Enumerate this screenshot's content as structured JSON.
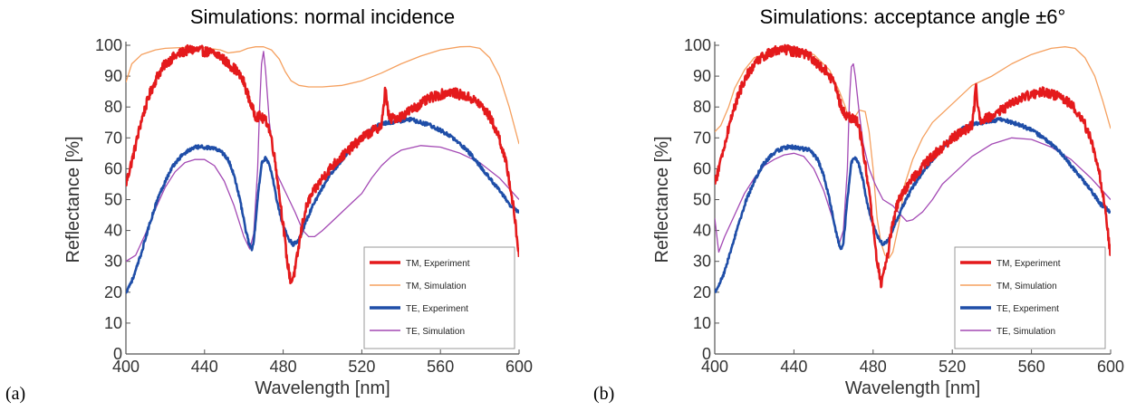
{
  "chart_data": [
    {
      "type": "line",
      "panel_label": "(a)",
      "title": "Simulations: normal incidence",
      "xlabel": "Wavelength [nm]",
      "ylabel": "Reflectance [%]",
      "xlim": [
        400,
        600
      ],
      "ylim": [
        0,
        100
      ],
      "xticks": [
        400,
        440,
        480,
        520,
        560,
        600
      ],
      "yticks": [
        0,
        10,
        20,
        30,
        40,
        50,
        60,
        70,
        80,
        90,
        100
      ],
      "grid": false,
      "legend_position": "bottom-right",
      "series": [
        {
          "name": "TM, Experiment",
          "color": "#e41a1c",
          "noise": 1.6,
          "x": [
            400,
            404,
            408,
            412,
            416,
            420,
            424,
            428,
            432,
            436,
            440,
            444,
            448,
            452,
            456,
            460,
            462,
            464,
            466,
            468,
            470,
            472,
            474,
            476,
            478,
            480,
            482,
            484,
            486,
            488,
            490,
            492,
            494,
            496,
            500,
            505,
            510,
            515,
            520,
            525,
            530,
            531,
            532,
            533,
            534,
            540,
            545,
            550,
            555,
            560,
            565,
            570,
            575,
            580,
            585,
            590,
            594,
            597,
            600
          ],
          "y": [
            55,
            65,
            76,
            84,
            90,
            94,
            96,
            97.5,
            98.5,
            98.5,
            98,
            97.5,
            96.5,
            94,
            92,
            88,
            84,
            80,
            77,
            77,
            76,
            75,
            70,
            62,
            52,
            42,
            30,
            23,
            27,
            35,
            43,
            48,
            51,
            53,
            57,
            61,
            64,
            67,
            70,
            72,
            74,
            79,
            87,
            80,
            76,
            77,
            79,
            81,
            83,
            84,
            85,
            84,
            83,
            81,
            77,
            70,
            60,
            48,
            32
          ]
        },
        {
          "name": "TM, Simulation",
          "color": "#f5a05f",
          "noise": 0,
          "x": [
            400,
            403,
            408,
            415,
            420,
            430,
            440,
            448,
            452,
            458,
            462,
            466,
            470,
            474,
            478,
            481,
            484,
            488,
            493,
            500,
            510,
            520,
            530,
            540,
            550,
            560,
            570,
            575,
            580,
            585,
            590,
            595,
            600
          ],
          "y": [
            88,
            94,
            97,
            98.5,
            99,
            99.3,
            99.2,
            98.5,
            97.5,
            98,
            99,
            99.5,
            99.5,
            98.5,
            95.5,
            91.5,
            88.5,
            87,
            86.5,
            86.5,
            87,
            88.5,
            91,
            94,
            96.5,
            98.5,
            99.5,
            99.6,
            99,
            96,
            90,
            80,
            68
          ]
        },
        {
          "name": "TE, Experiment",
          "color": "#1f4ea8",
          "noise": 0.6,
          "x": [
            400,
            404,
            408,
            412,
            416,
            420,
            424,
            428,
            432,
            436,
            440,
            444,
            448,
            452,
            455,
            458,
            461,
            463,
            464,
            465,
            467,
            469,
            471,
            473,
            475,
            477,
            479,
            481,
            483,
            485,
            488,
            491,
            495,
            500,
            505,
            510,
            515,
            520,
            525,
            530,
            535,
            540,
            545,
            550,
            555,
            560,
            565,
            570,
            575,
            580,
            585,
            590,
            595,
            600
          ],
          "y": [
            20,
            25,
            33,
            42,
            50,
            56,
            61,
            64,
            66,
            67,
            67,
            66.5,
            66,
            63,
            58,
            50,
            40,
            35,
            34,
            36,
            50,
            62,
            63.5,
            61,
            56,
            49,
            44,
            40,
            37,
            35.5,
            37,
            42,
            48,
            54,
            59,
            63,
            67,
            70,
            73,
            74.5,
            75,
            75.5,
            76,
            75,
            74,
            72.5,
            70.5,
            68,
            65,
            61,
            57,
            53,
            48.5,
            46
          ]
        },
        {
          "name": "TE, Simulation",
          "color": "#a349b4",
          "noise": 0,
          "x": [
            400,
            405,
            410,
            415,
            420,
            425,
            430,
            435,
            440,
            445,
            450,
            455,
            460,
            463,
            465,
            467,
            468,
            469,
            470,
            471,
            473,
            475,
            477,
            480,
            483,
            486,
            490,
            493,
            496,
            500,
            505,
            510,
            515,
            520,
            525,
            530,
            535,
            540,
            550,
            560,
            570,
            580,
            590,
            600
          ],
          "y": [
            30,
            32,
            39,
            47,
            54,
            59,
            62,
            63,
            63,
            61,
            56,
            48,
            38,
            34,
            39,
            60,
            80,
            94,
            98,
            92,
            75,
            65,
            58,
            54,
            50,
            46,
            40,
            38,
            38,
            40,
            43,
            46,
            49,
            52,
            57,
            61,
            64,
            66,
            67.5,
            67,
            65,
            62,
            57,
            50
          ]
        }
      ]
    },
    {
      "type": "line",
      "panel_label": "(b)",
      "title": "Simulations: acceptance angle ±6°",
      "xlabel": "Wavelength [nm]",
      "ylabel": "Reflectance [%]",
      "xlim": [
        400,
        600
      ],
      "ylim": [
        0,
        100
      ],
      "xticks": [
        400,
        440,
        480,
        520,
        560,
        600
      ],
      "yticks": [
        0,
        10,
        20,
        30,
        40,
        50,
        60,
        70,
        80,
        90,
        100
      ],
      "grid": false,
      "legend_position": "bottom-right",
      "series": [
        {
          "name": "TM, Experiment",
          "color": "#e41a1c",
          "noise": 1.6,
          "x": [
            400,
            404,
            408,
            412,
            416,
            420,
            424,
            428,
            432,
            436,
            440,
            444,
            448,
            452,
            456,
            460,
            462,
            464,
            466,
            468,
            470,
            472,
            474,
            476,
            478,
            480,
            482,
            484,
            486,
            488,
            490,
            492,
            494,
            496,
            500,
            505,
            510,
            515,
            520,
            525,
            530,
            531,
            532,
            533,
            534,
            540,
            545,
            550,
            555,
            560,
            565,
            570,
            575,
            580,
            585,
            590,
            594,
            597,
            600
          ],
          "y": [
            55,
            65,
            76,
            84,
            90,
            94,
            96,
            97.5,
            98.5,
            98.5,
            98,
            97.5,
            96.5,
            94,
            92,
            88,
            84,
            80,
            77,
            77,
            76,
            75,
            70,
            62,
            52,
            42,
            30,
            23,
            27,
            35,
            43,
            48,
            51,
            53,
            57,
            61,
            64,
            67,
            70,
            72,
            74,
            79,
            87,
            80,
            76,
            77,
            79,
            81,
            83,
            84,
            85,
            84,
            83,
            81,
            77,
            70,
            60,
            48,
            32
          ]
        },
        {
          "name": "TM, Simulation",
          "color": "#f5a05f",
          "noise": 0,
          "x": [
            400,
            403,
            407,
            410,
            415,
            420,
            430,
            440,
            450,
            458,
            463,
            466,
            468,
            470,
            473,
            476,
            478,
            480,
            482,
            484,
            486,
            488,
            490,
            493,
            496,
            500,
            505,
            510,
            520,
            530,
            540,
            550,
            560,
            570,
            577,
            582,
            587,
            592,
            596,
            600
          ],
          "y": [
            72,
            74,
            80,
            86,
            92,
            96,
            98,
            98.5,
            97,
            92,
            85,
            80,
            75,
            76,
            79,
            78.5,
            72,
            60,
            44,
            36,
            32,
            31,
            33,
            42,
            55,
            63,
            70,
            75,
            81,
            87,
            90,
            94,
            97,
            99,
            99.5,
            99,
            96,
            90,
            82,
            73
          ]
        },
        {
          "name": "TE, Experiment",
          "color": "#1f4ea8",
          "noise": 0.6,
          "x": [
            400,
            404,
            408,
            412,
            416,
            420,
            424,
            428,
            432,
            436,
            440,
            444,
            448,
            452,
            455,
            458,
            461,
            463,
            464,
            465,
            467,
            469,
            471,
            473,
            475,
            477,
            479,
            481,
            483,
            485,
            488,
            491,
            495,
            500,
            505,
            510,
            515,
            520,
            525,
            530,
            535,
            540,
            545,
            550,
            555,
            560,
            565,
            570,
            575,
            580,
            585,
            590,
            595,
            600
          ],
          "y": [
            20,
            25,
            33,
            42,
            50,
            56,
            61,
            64,
            66,
            67,
            67,
            66.5,
            66,
            63,
            58,
            50,
            40,
            35,
            34,
            36,
            50,
            62,
            63.5,
            61,
            56,
            49,
            44,
            40,
            37,
            35.5,
            37,
            42,
            48,
            54,
            59,
            63,
            67,
            70,
            73,
            74.5,
            75,
            75.5,
            76,
            75,
            74,
            72.5,
            70.5,
            68,
            65,
            61,
            57,
            53,
            48.5,
            46
          ]
        },
        {
          "name": "TE, Simulation",
          "color": "#a349b4",
          "noise": 0,
          "x": [
            400,
            402,
            405,
            410,
            415,
            420,
            425,
            430,
            435,
            440,
            445,
            450,
            455,
            460,
            463,
            465,
            467,
            468,
            469,
            470,
            471,
            473,
            475,
            478,
            481,
            485,
            490,
            494,
            497,
            500,
            505,
            510,
            515,
            520,
            530,
            540,
            550,
            560,
            570,
            580,
            590,
            600
          ],
          "y": [
            44,
            33,
            38,
            45,
            52,
            57,
            61,
            63,
            64.5,
            65,
            64,
            60,
            53,
            43,
            36,
            40,
            60,
            82,
            93,
            94,
            90,
            78,
            68,
            60,
            55,
            50,
            48,
            45,
            43,
            43.5,
            46,
            50,
            55,
            58,
            64,
            68,
            70,
            69.5,
            67,
            63,
            57,
            50
          ]
        }
      ]
    }
  ]
}
